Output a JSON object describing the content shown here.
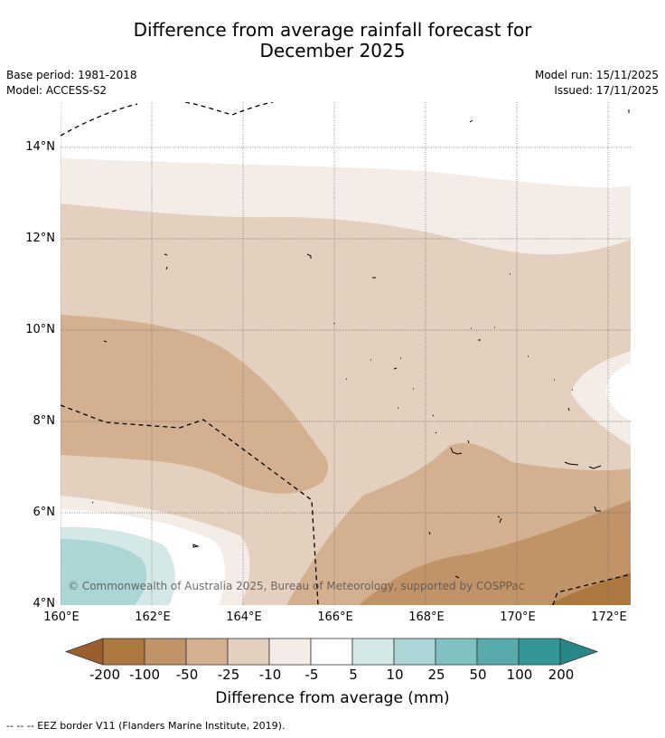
{
  "title": {
    "line1": "Difference from average rainfall forecast for",
    "line2": "December 2025"
  },
  "meta": {
    "base_period": "Base period: 1981-2018",
    "model": "Model: ACCESS-S2",
    "model_run": "Model run: 15/11/2025",
    "issued": "Issued: 17/11/2025"
  },
  "map": {
    "lat_range": [
      4,
      15
    ],
    "lon_range": [
      160,
      172.5
    ],
    "lat_ticks": [
      {
        "value": 14,
        "label": "14°N"
      },
      {
        "value": 12,
        "label": "12°N"
      },
      {
        "value": 10,
        "label": "10°N"
      },
      {
        "value": 8,
        "label": "8°N"
      },
      {
        "value": 6,
        "label": "6°N"
      },
      {
        "value": 4,
        "label": "4°N"
      }
    ],
    "lon_ticks": [
      {
        "value": 160,
        "label": "160°E"
      },
      {
        "value": 162,
        "label": "162°E"
      },
      {
        "value": 164,
        "label": "164°E"
      },
      {
        "value": 166,
        "label": "166°E"
      },
      {
        "value": 168,
        "label": "168°E"
      },
      {
        "value": 170,
        "label": "170°E"
      },
      {
        "value": 172,
        "label": "172°E"
      }
    ],
    "copyright": "© Commonwealth of Australia 2025, Bureau of Meteorology, supported by COSPPac"
  },
  "colorbar": {
    "title": "Difference from average (mm)",
    "tick_labels": [
      "-200",
      "-100",
      "-50",
      "-25",
      "-10",
      "-5",
      "5",
      "10",
      "25",
      "50",
      "100",
      "200"
    ],
    "colors": {
      "below_min": "#9b5f2e",
      "bins": [
        "#ad7740",
        "#c09368",
        "#d3b190",
        "#e4d0bf",
        "#f4ece7",
        "#ffffff",
        "#d4e8e7",
        "#acd6d6",
        "#80c1c1",
        "#59abab",
        "#339797"
      ],
      "above_max": "#2a8787"
    }
  },
  "footnote": "--  --  -- EEZ border V11 (Flanders Marine Institute, 2019)."
}
